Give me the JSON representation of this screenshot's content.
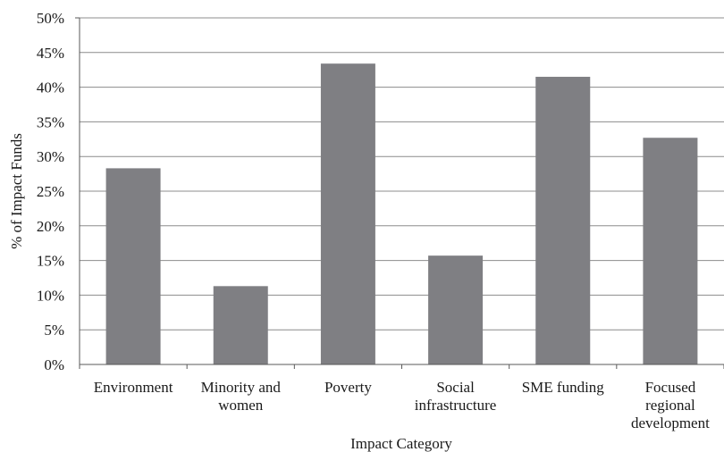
{
  "chart_data": {
    "type": "bar",
    "title": "",
    "xlabel": "Impact Category",
    "ylabel": "% of Impact Funds",
    "ylim": [
      0,
      50
    ],
    "y_tick_step": 5,
    "y_tick_labels": [
      "0%",
      "5%",
      "10%",
      "15%",
      "20%",
      "25%",
      "30%",
      "35%",
      "40%",
      "45%",
      "50%"
    ],
    "grid": true,
    "legend": "none",
    "categories": [
      [
        "Environment"
      ],
      [
        "Minority and",
        "women"
      ],
      [
        "Poverty"
      ],
      [
        "Social",
        "infrastructure"
      ],
      [
        "SME funding"
      ],
      [
        "Focused",
        "regional",
        "development"
      ]
    ],
    "values": [
      28.3,
      11.3,
      43.4,
      15.7,
      41.5,
      32.7
    ],
    "bar_color": "#7f7f83",
    "grid_color": "#8c8c8c",
    "axis_color": "#5a5a5a"
  }
}
